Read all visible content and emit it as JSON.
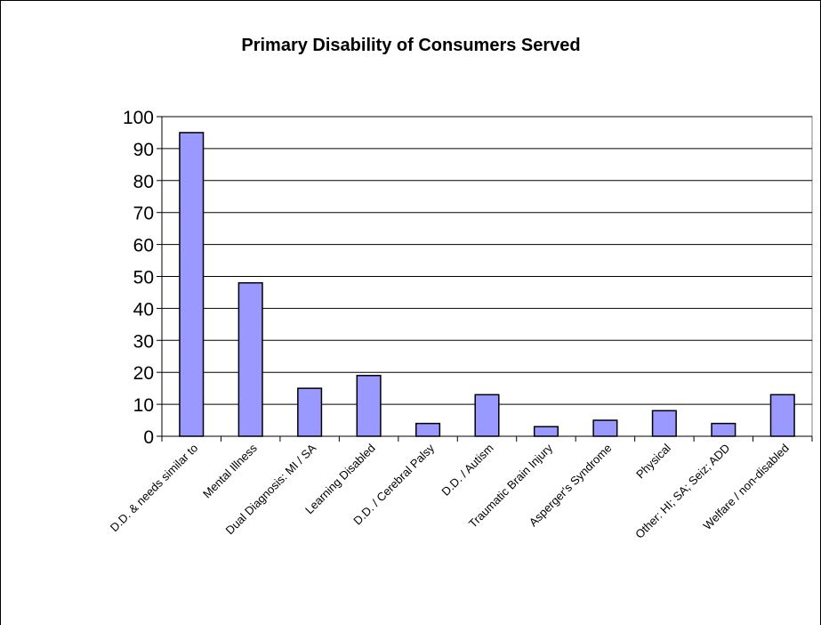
{
  "chart_data": {
    "type": "bar",
    "title": "Primary Disability of Consumers Served",
    "categories": [
      "D.D. & needs similar to",
      "Mental Illness",
      "Dual Diagnosis: MI / SA",
      "Learning Disabled",
      "D.D. / Cerebral Palsy",
      "D.D. / Autism",
      "Traumatic Brain Injury",
      "Asperger's Syndrome",
      "Physical",
      "Other: HI; SA; Seiz; ADD",
      "Welfare / non-disabled"
    ],
    "values": [
      95,
      48,
      15,
      19,
      4,
      13,
      3,
      5,
      8,
      4,
      13
    ],
    "ylim": [
      0,
      100
    ],
    "yticks": [
      0,
      10,
      20,
      30,
      40,
      50,
      60,
      70,
      80,
      90,
      100
    ],
    "grid": true,
    "legend": false,
    "colors": {
      "bar_fill": "#9999ff",
      "bar_stroke": "#000000",
      "plot_border": "#808080",
      "grid": "#000000"
    }
  }
}
